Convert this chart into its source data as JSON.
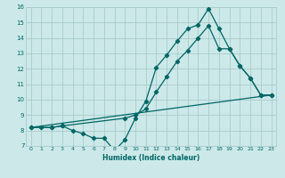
{
  "xlabel": "Humidex (Indice chaleur)",
  "bg_color": "#cce8e8",
  "line_color": "#006666",
  "grid_color": "#aacccc",
  "xlim": [
    -0.5,
    23.5
  ],
  "ylim": [
    7,
    16
  ],
  "xtick_labels": [
    "0",
    "1",
    "2",
    "3",
    "4",
    "5",
    "6",
    "7",
    "8",
    "9",
    "10",
    "11",
    "12",
    "13",
    "14",
    "15",
    "16",
    "17",
    "18",
    "19",
    "20",
    "21",
    "22",
    "23"
  ],
  "xticks": [
    0,
    1,
    2,
    3,
    4,
    5,
    6,
    7,
    8,
    9,
    10,
    11,
    12,
    13,
    14,
    15,
    16,
    17,
    18,
    19,
    20,
    21,
    22,
    23
  ],
  "yticks": [
    7,
    8,
    9,
    10,
    11,
    12,
    13,
    14,
    15,
    16
  ],
  "line1_x": [
    0,
    1,
    2,
    3,
    4,
    5,
    6,
    7,
    8,
    9,
    10,
    11,
    12,
    13,
    14,
    15,
    16,
    17,
    18,
    19,
    20,
    21,
    22,
    23
  ],
  "line1_y": [
    8.2,
    8.2,
    8.2,
    8.3,
    8.0,
    7.8,
    7.5,
    7.5,
    6.7,
    7.4,
    8.8,
    9.9,
    12.1,
    12.9,
    13.8,
    14.6,
    14.85,
    15.9,
    14.6,
    13.3,
    12.2,
    11.4,
    10.3,
    10.3
  ],
  "line2_x": [
    0,
    2,
    3,
    9,
    10,
    11,
    12,
    13,
    14,
    15,
    16,
    17,
    18,
    19,
    20,
    21,
    22,
    23
  ],
  "line2_y": [
    8.2,
    8.2,
    8.3,
    8.8,
    9.0,
    9.4,
    10.5,
    11.5,
    12.5,
    13.2,
    14.0,
    14.8,
    13.3,
    13.3,
    12.2,
    11.4,
    10.3,
    10.3
  ],
  "line3_x": [
    0,
    23
  ],
  "line3_y": [
    8.2,
    10.3
  ]
}
